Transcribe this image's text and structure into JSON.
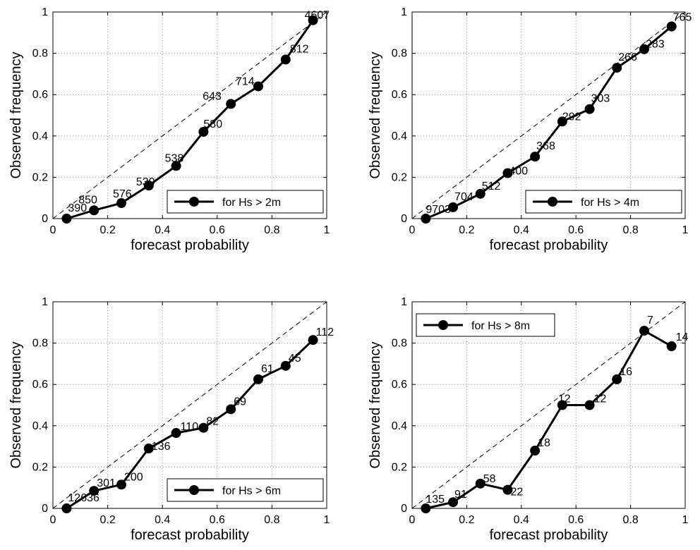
{
  "chart_data": [
    {
      "type": "line",
      "xlabel": "forecast probability",
      "ylabel": "Observed frequency",
      "xlim": [
        0,
        1
      ],
      "ylim": [
        0,
        1
      ],
      "xticks": [
        "0",
        "0.2",
        "0.4",
        "0.6",
        "0.8",
        "1"
      ],
      "yticks": [
        "0",
        "0.2",
        "0.4",
        "0.6",
        "0.8",
        "1"
      ],
      "grid": true,
      "legend_position": "bottom-right",
      "reference_line": "diagonal dashed",
      "series": [
        {
          "name": "for Hs > 2m",
          "x": [
            0.05,
            0.15,
            0.25,
            0.35,
            0.45,
            0.55,
            0.65,
            0.75,
            0.85,
            0.95
          ],
          "y": [
            0.0,
            0.04,
            0.075,
            0.16,
            0.255,
            0.42,
            0.555,
            0.64,
            0.77,
            0.96
          ],
          "labels": [
            "390",
            "850",
            "576",
            "530",
            "538",
            "580",
            "643",
            "714",
            "812",
            "4607"
          ]
        }
      ]
    },
    {
      "type": "line",
      "xlabel": "forecast probability",
      "ylabel": "Observed frequency",
      "xlim": [
        0,
        1
      ],
      "ylim": [
        0,
        1
      ],
      "xticks": [
        "0",
        "0.2",
        "0.4",
        "0.6",
        "0.8",
        "1"
      ],
      "yticks": [
        "0",
        "0.2",
        "0.4",
        "0.6",
        "0.8",
        "1"
      ],
      "grid": true,
      "legend_position": "bottom-right",
      "reference_line": "diagonal dashed",
      "series": [
        {
          "name": "for Hs > 4m",
          "x": [
            0.05,
            0.15,
            0.25,
            0.35,
            0.45,
            0.55,
            0.65,
            0.75,
            0.85,
            0.95
          ],
          "y": [
            0.0,
            0.055,
            0.12,
            0.22,
            0.3,
            0.47,
            0.53,
            0.73,
            0.82,
            0.93
          ],
          "labels": [
            "9703",
            "704",
            "512",
            "400",
            "368",
            "292",
            "303",
            "266",
            "283",
            "765"
          ]
        }
      ]
    },
    {
      "type": "line",
      "xlabel": "forecast probability",
      "ylabel": "Observed frequency",
      "xlim": [
        0,
        1
      ],
      "ylim": [
        0,
        1
      ],
      "xticks": [
        "0",
        "0.2",
        "0.4",
        "0.6",
        "0.8",
        "1"
      ],
      "yticks": [
        "0",
        "0.2",
        "0.4",
        "0.6",
        "0.8",
        "1"
      ],
      "grid": true,
      "legend_position": "bottom-right",
      "reference_line": "diagonal dashed",
      "series": [
        {
          "name": "for Hs > 6m",
          "x": [
            0.05,
            0.15,
            0.25,
            0.35,
            0.45,
            0.55,
            0.65,
            0.75,
            0.85,
            0.95
          ],
          "y": [
            0.0,
            0.085,
            0.115,
            0.29,
            0.365,
            0.39,
            0.48,
            0.625,
            0.69,
            0.815
          ],
          "labels": [
            "12636",
            "301",
            "200",
            "136",
            "110",
            "82",
            "69",
            "61",
            "45",
            "112"
          ]
        }
      ]
    },
    {
      "type": "line",
      "xlabel": "forecast probability",
      "ylabel": "Observed frequency",
      "xlim": [
        0,
        1
      ],
      "ylim": [
        0,
        1
      ],
      "xticks": [
        "0",
        "0.2",
        "0.4",
        "0.6",
        "0.8",
        "1"
      ],
      "yticks": [
        "0",
        "0.2",
        "0.4",
        "0.6",
        "0.8",
        "1"
      ],
      "grid": true,
      "legend_position": "top-left",
      "reference_line": "diagonal dashed",
      "series": [
        {
          "name": "for Hs > 8m",
          "x": [
            0.05,
            0.15,
            0.25,
            0.35,
            0.45,
            0.55,
            0.65,
            0.75,
            0.85,
            0.95
          ],
          "y": [
            0.0,
            0.03,
            0.12,
            0.09,
            0.28,
            0.5,
            0.5,
            0.625,
            0.86,
            0.785
          ],
          "labels": [
            "135",
            "91",
            "58",
            "22",
            "18",
            "12",
            "12",
            "16",
            "7",
            "14"
          ]
        }
      ]
    }
  ]
}
